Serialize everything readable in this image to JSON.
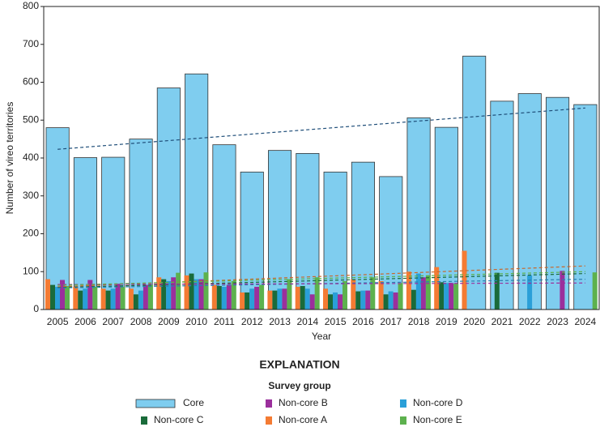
{
  "chart_data": {
    "type": "bar",
    "x_label": "Year",
    "y_label": "Number of vireo territories",
    "legend_title": "EXPLANATION",
    "legend_subtitle": "Survey group",
    "categories": [
      "2005",
      "2006",
      "2007",
      "2008",
      "2009",
      "2010",
      "2011",
      "2012",
      "2013",
      "2014",
      "2015",
      "2016",
      "2017",
      "2018",
      "2019",
      "2020",
      "2021",
      "2022",
      "2023",
      "2024"
    ],
    "ylim": [
      0,
      800
    ],
    "yticks": [
      0,
      100,
      200,
      300,
      400,
      500,
      600,
      700,
      800
    ],
    "series": [
      {
        "name": "Core",
        "color": "#7fcdef",
        "trend_color": "#1f4e79",
        "trend": [
          423,
          532
        ],
        "values": [
          480,
          401,
          402,
          450,
          585,
          622,
          435,
          363,
          420,
          412,
          363,
          389,
          351,
          506,
          481,
          669,
          550,
          570,
          560,
          541
        ]
      },
      {
        "name": "Non-core A",
        "color": "#f47b33",
        "trend_color": "#c8682c",
        "trend": [
          60,
          115
        ],
        "values": [
          80,
          60,
          55,
          55,
          85,
          90,
          65,
          45,
          50,
          60,
          55,
          80,
          75,
          100,
          112,
          155,
          null,
          null,
          null,
          null
        ]
      },
      {
        "name": "Non-core C",
        "color": "#1a6b3a",
        "trend_color": "#1a6b3a",
        "trend": [
          58,
          95
        ],
        "values": [
          65,
          50,
          50,
          40,
          80,
          95,
          62,
          45,
          50,
          62,
          40,
          48,
          40,
          52,
          72,
          null,
          97,
          null,
          null,
          null
        ]
      },
      {
        "name": "Non-core D",
        "color": "#2a9fd8",
        "trend_color": "#2a7fb0",
        "trend": [
          57,
          80
        ],
        "values": [
          60,
          55,
          55,
          50,
          75,
          80,
          60,
          55,
          55,
          55,
          45,
          50,
          48,
          95,
          70,
          null,
          null,
          90,
          null,
          null
        ]
      },
      {
        "name": "Non-core B",
        "color": "#9b2f9c",
        "trend_color": "#9b2f9c",
        "trend": [
          66,
          70
        ],
        "values": [
          78,
          78,
          68,
          65,
          85,
          80,
          65,
          60,
          55,
          40,
          40,
          50,
          45,
          85,
          70,
          null,
          null,
          null,
          102,
          null
        ]
      },
      {
        "name": "Non-core E",
        "color": "#5db14e",
        "trend_color": "#5db14e",
        "trend": [
          64,
          100
        ],
        "values": [
          62,
          60,
          60,
          65,
          97,
          98,
          75,
          65,
          80,
          85,
          75,
          85,
          70,
          90,
          68,
          null,
          null,
          null,
          null,
          98
        ]
      }
    ],
    "legend_order": [
      0,
      2,
      4,
      1,
      3,
      5
    ]
  }
}
